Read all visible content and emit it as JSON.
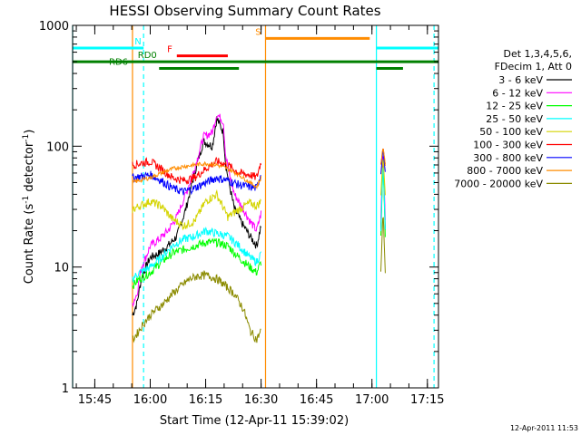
{
  "chart_data": {
    "type": "line",
    "title": "HESSI Observing Summary Count Rates",
    "xlabel": "Start Time (12-Apr-11 15:39:02)",
    "ylabel_main": "Count Rate (s",
    "ylabel_sup1": "-1",
    "ylabel_mid": " detector",
    "ylabel_sup2": "-1",
    "ylabel_end": ")",
    "yscale": "log",
    "ylim": [
      1,
      1000
    ],
    "xlim_minutes": [
      15.65,
      17.3
    ],
    "x_ticks": [
      {
        "value": 15.75,
        "label": "15:45"
      },
      {
        "value": 16.0,
        "label": "16:00"
      },
      {
        "value": 16.25,
        "label": "16:15"
      },
      {
        "value": 16.5,
        "label": "16:30"
      },
      {
        "value": 16.75,
        "label": "16:45"
      },
      {
        "value": 17.0,
        "label": "17:00"
      },
      {
        "value": 17.25,
        "label": "17:15"
      }
    ],
    "y_ticks": [
      {
        "value": 1,
        "label": "1"
      },
      {
        "value": 10,
        "label": "10"
      },
      {
        "value": 100,
        "label": "100"
      },
      {
        "value": 1000,
        "label": "1000"
      }
    ],
    "legend_title_1": "Det 1,3,4,5,6,",
    "legend_title_2": "FDecim 1, Att 0",
    "legend_position": "right",
    "series": [
      {
        "name": "3 - 6 keV",
        "color": "#000000",
        "x": [
          15.92,
          15.94,
          15.96,
          15.98,
          16.0,
          16.04,
          16.08,
          16.12,
          16.16,
          16.2,
          16.24,
          16.28,
          16.3,
          16.33,
          16.34,
          16.36,
          16.38,
          16.42,
          16.45,
          16.48,
          16.5
        ],
        "y": [
          4,
          5,
          8,
          10,
          12,
          13,
          15,
          18,
          30,
          60,
          110,
          100,
          170,
          130,
          70,
          45,
          30,
          22,
          18,
          15,
          22
        ],
        "x2": [
          17.04,
          17.05,
          17.06
        ],
        "y2": [
          20,
          90,
          20
        ]
      },
      {
        "name": "6 - 12 keV",
        "color": "#ff00ff",
        "x": [
          15.92,
          15.94,
          15.96,
          15.98,
          16.0,
          16.04,
          16.08,
          16.12,
          16.16,
          16.2,
          16.24,
          16.28,
          16.3,
          16.33,
          16.34,
          16.36,
          16.38,
          16.42,
          16.45,
          16.48,
          16.5
        ],
        "y": [
          5,
          6,
          10,
          12,
          15,
          17,
          20,
          26,
          40,
          65,
          120,
          130,
          185,
          160,
          85,
          55,
          40,
          30,
          24,
          20,
          28
        ],
        "x2": [
          17.04,
          17.05,
          17.06
        ],
        "y2": [
          25,
          100,
          25
        ]
      },
      {
        "name": "12 - 25 keV",
        "color": "#00ff00",
        "x": [
          15.92,
          15.95,
          16.0,
          16.05,
          16.1,
          16.15,
          16.2,
          16.25,
          16.3,
          16.35,
          16.4,
          16.45,
          16.48,
          16.5
        ],
        "y": [
          7,
          8,
          9,
          11,
          13,
          14,
          15,
          16,
          16,
          15,
          12,
          10,
          9,
          11
        ],
        "x2": [
          17.04,
          17.05,
          17.06
        ],
        "y2": [
          18,
          75,
          18
        ]
      },
      {
        "name": "25 - 50 keV",
        "color": "#00ffff",
        "x": [
          15.92,
          15.95,
          16.0,
          16.05,
          16.1,
          16.15,
          16.2,
          16.25,
          16.3,
          16.35,
          16.4,
          16.45,
          16.48,
          16.5
        ],
        "y": [
          8,
          9,
          10,
          12,
          15,
          17,
          18,
          20,
          19,
          18,
          15,
          12,
          11,
          13
        ],
        "x2": [
          17.04,
          17.05,
          17.06
        ],
        "y2": [
          20,
          80,
          20
        ]
      },
      {
        "name": "50 - 100 keV",
        "color": "#d4d400",
        "x": [
          15.92,
          15.95,
          16.0,
          16.05,
          16.1,
          16.15,
          16.2,
          16.25,
          16.3,
          16.35,
          16.4,
          16.45,
          16.48,
          16.5
        ],
        "y": [
          30,
          32,
          35,
          32,
          25,
          22,
          24,
          35,
          40,
          26,
          30,
          34,
          32,
          35
        ],
        "x2": [
          17.04,
          17.05,
          17.06
        ],
        "y2": [
          40,
          85,
          40
        ]
      },
      {
        "name": "100 - 300 keV",
        "color": "#ff0000",
        "x": [
          15.92,
          15.95,
          16.0,
          16.05,
          16.1,
          16.15,
          16.2,
          16.25,
          16.3,
          16.35,
          16.4,
          16.45,
          16.48,
          16.5
        ],
        "y": [
          70,
          72,
          75,
          65,
          55,
          52,
          55,
          65,
          75,
          70,
          60,
          58,
          55,
          75
        ],
        "x2": [
          17.04,
          17.05,
          17.06
        ],
        "y2": [
          70,
          100,
          70
        ]
      },
      {
        "name": "300 - 800 keV",
        "color": "#0000ff",
        "x": [
          15.92,
          15.95,
          16.0,
          16.05,
          16.1,
          16.15,
          16.2,
          16.25,
          16.3,
          16.35,
          16.4,
          16.45,
          16.48,
          16.5
        ],
        "y": [
          55,
          56,
          58,
          52,
          45,
          42,
          45,
          50,
          55,
          52,
          48,
          46,
          45,
          60
        ],
        "x2": [
          17.04,
          17.05,
          17.06
        ],
        "y2": [
          60,
          95,
          60
        ]
      },
      {
        "name": "800 - 7000 keV",
        "color": "#ff8c00",
        "x": [
          15.92,
          15.95,
          16.0,
          16.05,
          16.1,
          16.15,
          16.2,
          16.25,
          16.3,
          16.35,
          16.4,
          16.45,
          16.48,
          16.5
        ],
        "y": [
          50,
          52,
          55,
          60,
          65,
          68,
          70,
          72,
          70,
          65,
          58,
          50,
          46,
          55
        ],
        "x2": [
          17.04,
          17.05,
          17.06
        ],
        "y2": [
          70,
          100,
          70
        ]
      },
      {
        "name": "7000 - 20000 keV",
        "color": "#8b8b00",
        "x": [
          15.92,
          15.94,
          15.96,
          15.98,
          16.0,
          16.03,
          16.06,
          16.1,
          16.14,
          16.18,
          16.22,
          16.26,
          16.3,
          16.34,
          16.38,
          16.42,
          16.45,
          16.48,
          16.5
        ],
        "y": [
          2.5,
          2.8,
          3.2,
          3.6,
          4,
          4.5,
          5,
          6,
          7,
          8,
          8.5,
          8.5,
          8,
          7,
          6,
          4.5,
          3,
          2.5,
          3
        ],
        "x2": [
          17.04,
          17.05,
          17.06
        ],
        "y2": [
          9,
          30,
          9
        ]
      }
    ],
    "flags": [
      {
        "label": "N",
        "color": "#00ffff",
        "y": 650,
        "segments": [
          [
            15.65,
            15.97
          ],
          [
            17.02,
            17.3
          ]
        ],
        "label_x": 15.96
      },
      {
        "label": "F",
        "color": "#ff0000",
        "y": 560,
        "segments": [
          [
            16.12,
            16.35
          ]
        ],
        "label_x": 16.1
      },
      {
        "label": "S",
        "color": "#ff8c00",
        "y": 780,
        "segments": [
          [
            16.52,
            16.99
          ]
        ],
        "label_x": 16.5
      },
      {
        "label": "RD0",
        "color": "#008000",
        "y": 500,
        "segments": [
          [
            15.65,
            17.3
          ]
        ],
        "label_x": 16.03
      },
      {
        "label": "RD6",
        "color": "#008000",
        "y": 440,
        "segments": [
          [
            16.04,
            16.4
          ],
          [
            17.02,
            17.14
          ]
        ],
        "label_x": 15.9
      }
    ],
    "vlines": [
      {
        "x": 15.65,
        "color": "#00ffff",
        "dashed": false
      },
      {
        "x": 15.97,
        "color": "#00ffff",
        "dashed": true
      },
      {
        "x": 15.92,
        "color": "#ff8c00",
        "dashed": false
      },
      {
        "x": 16.52,
        "color": "#ff8c00",
        "dashed": false
      },
      {
        "x": 17.02,
        "color": "#00ffff",
        "dashed": false
      },
      {
        "x": 17.28,
        "color": "#00ffff",
        "dashed": true
      }
    ]
  },
  "footer_timestamp": "12-Apr-2011 11:53"
}
